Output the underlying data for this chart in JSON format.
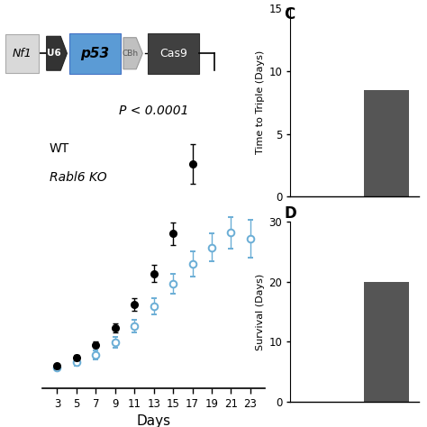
{
  "days_wt": [
    3,
    5,
    7,
    9,
    11,
    13,
    15,
    17
  ],
  "days_ko": [
    3,
    5,
    7,
    9,
    11,
    13,
    15,
    17,
    19,
    21,
    23
  ],
  "wt_mean": [
    1.05,
    1.22,
    1.48,
    1.82,
    2.28,
    2.9,
    3.7,
    5.1
  ],
  "wt_err": [
    0.04,
    0.06,
    0.07,
    0.09,
    0.12,
    0.17,
    0.22,
    0.4
  ],
  "ko_mean": [
    1.02,
    1.12,
    1.28,
    1.52,
    1.85,
    2.25,
    2.7,
    3.1,
    3.42,
    3.72,
    3.6
  ],
  "ko_err": [
    0.05,
    0.07,
    0.09,
    0.11,
    0.13,
    0.16,
    0.2,
    0.25,
    0.28,
    0.32,
    0.38
  ],
  "wt_color": "#000000",
  "ko_color": "#6baed6",
  "pvalue_text": "P < 0.0001",
  "xlabel": "Days",
  "legend_wt": "WT",
  "legend_ko": "Rabl6 KO",
  "background_color": "#ffffff",
  "diagram_nf1_label": "Nf1",
  "diagram_u6_label": "U6",
  "diagram_p53_label": "p53",
  "diagram_cbh_label": "CBh",
  "diagram_cas9_label": "Cas9",
  "panel_c_label": "C",
  "panel_c_ylabel": "Time to Triple (Days)",
  "panel_c_yticks": [
    0,
    5,
    10,
    15
  ],
  "panel_d_label": "D",
  "panel_d_ylabel": "Survival (Days)",
  "panel_d_yticks": [
    0,
    10,
    20,
    30
  ]
}
